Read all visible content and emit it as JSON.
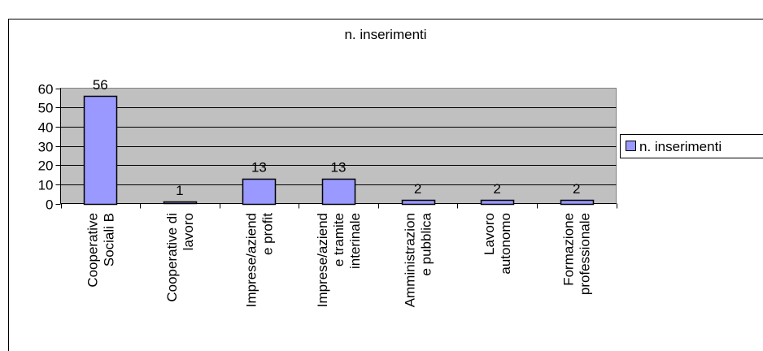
{
  "chart_data": {
    "type": "bar",
    "title": "n. inserimenti",
    "categories": [
      [
        "Cooperative",
        "Sociali B"
      ],
      [
        "Cooperative di",
        "lavoro"
      ],
      [
        "Imprese/aziend",
        "e profit"
      ],
      [
        "Imprese/aziend",
        "e tramite",
        "interinale"
      ],
      [
        "Amministrazion",
        "e pubblica"
      ],
      [
        "Lavoro",
        "autonomo"
      ],
      [
        "Formazione",
        "professionale"
      ]
    ],
    "series": [
      {
        "name": "n. inserimenti",
        "values": [
          56,
          1,
          13,
          13,
          2,
          2,
          2
        ]
      }
    ],
    "data_labels": [
      "56",
      "1",
      "13",
      "13",
      "2",
      "2",
      "2"
    ],
    "ylim": [
      0,
      60
    ],
    "yticks": [
      0,
      10,
      20,
      30,
      40,
      50,
      60
    ],
    "ytick_labels": [
      "0",
      "10",
      "20",
      "30",
      "40",
      "50",
      "60"
    ],
    "xlabel": "",
    "ylabel": "",
    "grid": true,
    "legend": {
      "position": "right",
      "entries": [
        "n. inserimenti"
      ]
    },
    "colors": {
      "bar_fill": "#9999ff",
      "bar_stroke": "#000000",
      "plot_background": "#c0c0c0",
      "frame": "#000000"
    }
  }
}
